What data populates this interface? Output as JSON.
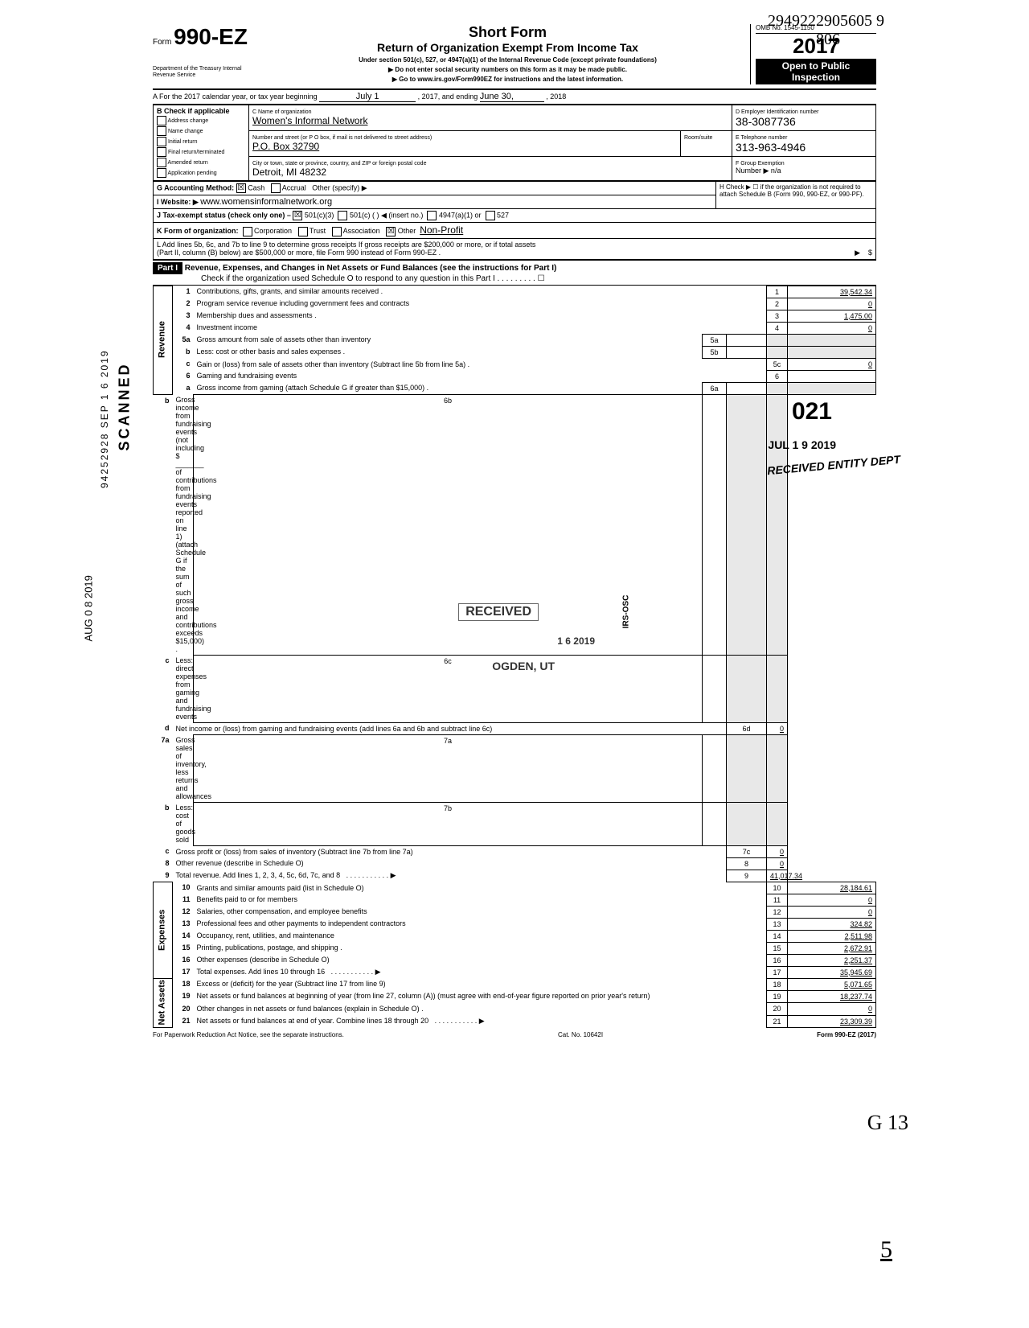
{
  "topright_hand": "2949222905605  9",
  "topright_hand2": "806",
  "form_code": "990-EZ",
  "form_word": "Form",
  "dept": "Department of the Treasury\nInternal Revenue Service",
  "title_main": "Short Form",
  "title_sub": "Return of Organization Exempt From Income Tax",
  "title_sec1": "Under section 501(c), 527, or 4947(a)(1) of the Internal Revenue Code (except private foundations)",
  "title_sec2": "▶ Do not enter social security numbers on this form as it may be made public.",
  "title_sec3": "▶ Go to www.irs.gov/Form990EZ for instructions and the latest information.",
  "omb": "OMB No. 1545-1150",
  "year": "2017",
  "open1": "Open to Public",
  "open2": "Inspection",
  "lineA": "A  For the 2017 calendar year, or tax year beginning",
  "lineA_begin": "July 1",
  "lineA_mid": ", 2017, and ending",
  "lineA_end": "June 30,",
  "lineA_endyear": ", 2018",
  "B_label": "B  Check if applicable",
  "B_items": [
    "Address change",
    "Name change",
    "Initial return",
    "Final return/terminated",
    "Amended return",
    "Application pending"
  ],
  "C_label": "C  Name of organization",
  "C_name": "Women's Informal Network",
  "C_addrlabel": "Number and street (or P O  box, if mail is not delivered to street address)",
  "C_addr": "P.O. Box 32790",
  "C_citylabel": "City or town, state or province, country, and ZIP or foreign postal code",
  "C_city": "Detroit, MI 48232",
  "room": "Room/suite",
  "D_label": "D Employer Identification number",
  "D_val": "38-3087736",
  "E_label": "E Telephone number",
  "E_val": "313-963-4946",
  "F_label": "F Group Exemption",
  "F_val": "Number ▶  n/a",
  "G_label": "G  Accounting Method:",
  "G_cash": "Cash",
  "G_acc": "Accrual",
  "G_other": "Other (specify) ▶",
  "I_label": "I   Website: ▶",
  "I_val": "www.womensinformalnetwork.org",
  "J_label": "J  Tax-exempt status (check only one) –",
  "J_501c3": "501(c)(3)",
  "J_501c": "501(c) (",
  "J_insert": ")  ◀ (insert no.)",
  "J_4947": "4947(a)(1) or",
  "J_527": "527",
  "K_label": "K  Form of organization:",
  "K_corp": "Corporation",
  "K_trust": "Trust",
  "K_assoc": "Association",
  "K_other": "Other",
  "K_otherval": "Non-Profit",
  "L_label": "L  Add lines 5b, 6c, and 7b to line 9 to determine gross receipts  If gross receipts are $200,000 or more, or if total assets",
  "L_label2": "(Part II, column (B) below) are $500,000 or more, file Form 990 instead of Form 990-EZ .",
  "H_label": "H  Check ▶ ☐ if the organization is not required to attach Schedule B (Form 990, 990-EZ, or 990-PF).",
  "part1_label": "Part I",
  "part1_title": "Revenue, Expenses, and Changes in Net Assets or Fund Balances (see the instructions for Part I)",
  "part1_check": "Check if the organization used Schedule O to respond to any question in this Part I .   .   .   .   .   .   .   .   .  ☐",
  "rows": [
    {
      "n": "1",
      "t": "Contributions, gifts, grants, and similar amounts received .",
      "amt": "39,542.34"
    },
    {
      "n": "2",
      "t": "Program service revenue including government fees and contracts",
      "amt": "0"
    },
    {
      "n": "3",
      "t": "Membership dues and assessments .",
      "amt": "1,475.00"
    },
    {
      "n": "4",
      "t": "Investment income",
      "amt": "0"
    },
    {
      "n": "5a",
      "t": "Gross amount from sale of assets other than inventory",
      "mid": "5a",
      "amt": "",
      "shade": true
    },
    {
      "n": "b",
      "t": "Less: cost or other basis and sales expenses .",
      "mid": "5b",
      "amt": "",
      "shade": true
    },
    {
      "n": "c",
      "t": "Gain or (loss) from sale of assets other than inventory (Subtract line 5b from line 5a) .",
      "box": "5c",
      "amt": "0"
    },
    {
      "n": "6",
      "t": "Gaming and fundraising events",
      "amt": "",
      "big": "021"
    },
    {
      "n": "a",
      "t": "Gross income from gaming (attach Schedule G if greater than $15,000) .",
      "mid": "6a",
      "shade": true
    },
    {
      "n": "b",
      "t": "Gross income from fundraising events (not including  $ _______ of contributions from fundraising events reported on line 1) (attach Schedule G if the sum of such gross income and contributions exceeds $15,000) .",
      "mid": "6b",
      "shade": true
    },
    {
      "n": "c",
      "t": "Less: direct expenses from gaming and fundraising events",
      "mid": "6c",
      "shade": true
    },
    {
      "n": "d",
      "t": "Net income or (loss) from gaming and fundraising events (add lines 6a and 6b and subtract line 6c)",
      "box": "6d",
      "amt": "0"
    },
    {
      "n": "7a",
      "t": "Gross sales of inventory, less returns and allowances",
      "mid": "7a",
      "shade": true
    },
    {
      "n": "b",
      "t": "Less: cost of goods sold",
      "mid": "7b",
      "shade": true
    },
    {
      "n": "c",
      "t": "Gross profit or (loss) from sales of inventory (Subtract line 7b from line 7a)",
      "box": "7c",
      "amt": "0"
    },
    {
      "n": "8",
      "t": "Other revenue (describe in Schedule O)",
      "box": "8",
      "amt": "0"
    },
    {
      "n": "9",
      "t": "Total revenue. Add lines 1, 2, 3, 4, 5c, 6d, 7c, and 8",
      "box": "9",
      "amt": "41,017.34",
      "arrow": true
    },
    {
      "n": "10",
      "t": "Grants and similar amounts paid (list in Schedule O)",
      "box": "10",
      "amt": "28,184.61"
    },
    {
      "n": "11",
      "t": "Benefits paid to or for members",
      "box": "11",
      "amt": "0"
    },
    {
      "n": "12",
      "t": "Salaries, other compensation, and employee benefits",
      "box": "12",
      "amt": "0"
    },
    {
      "n": "13",
      "t": "Professional fees and other payments to independent contractors",
      "box": "13",
      "amt": "324.82"
    },
    {
      "n": "14",
      "t": "Occupancy, rent, utilities, and maintenance",
      "box": "14",
      "amt": "2,511.98"
    },
    {
      "n": "15",
      "t": "Printing, publications, postage, and shipping .",
      "box": "15",
      "amt": "2,672.91"
    },
    {
      "n": "16",
      "t": "Other expenses (describe in Schedule O)",
      "box": "16",
      "amt": "2,251.37"
    },
    {
      "n": "17",
      "t": "Total expenses. Add lines 10 through 16",
      "box": "17",
      "amt": "35,945.69",
      "arrow": true
    },
    {
      "n": "18",
      "t": "Excess or (deficit) for the year (Subtract line 17 from line 9)",
      "box": "18",
      "amt": "5,071.65"
    },
    {
      "n": "19",
      "t": "Net assets or fund balances at beginning of year (from line 27, column (A)) (must agree with end-of-year figure reported on prior year's return)",
      "box": "19",
      "amt": "18,237.74"
    },
    {
      "n": "20",
      "t": "Other changes in net assets or fund balances (explain in Schedule O) .",
      "box": "20",
      "amt": "0"
    },
    {
      "n": "21",
      "t": "Net assets or fund balances at end of year. Combine lines 18 through 20",
      "box": "21",
      "amt": "23,309.39",
      "arrow": true
    }
  ],
  "vert_rev": "Revenue",
  "vert_exp": "Expenses",
  "vert_na": "Net Assets",
  "side_scanned": "SCANNED",
  "side_date": "AUG 0 8 2019",
  "side_nums": "94252928  SEP 1 6 2019",
  "stamp_received": "RECEIVED",
  "stamp_jul": "JUL 1 9 2019",
  "stamp_ent": "RECEIVED ENTITY DEPT",
  "stamp_osc": "IRS-OSC",
  "stamp_ogden": "OGDEN, UT",
  "stamp_date2": "1 6  2019",
  "footer_left": "For Paperwork Reduction Act Notice, see the separate instructions.",
  "footer_mid": "Cat. No. 10642I",
  "footer_right": "Form 990-EZ (2017)",
  "bottom_hand": "G 13",
  "bottom_hand2": "5",
  "colors": {
    "black": "#000000",
    "shade": "#e8e8e8"
  }
}
